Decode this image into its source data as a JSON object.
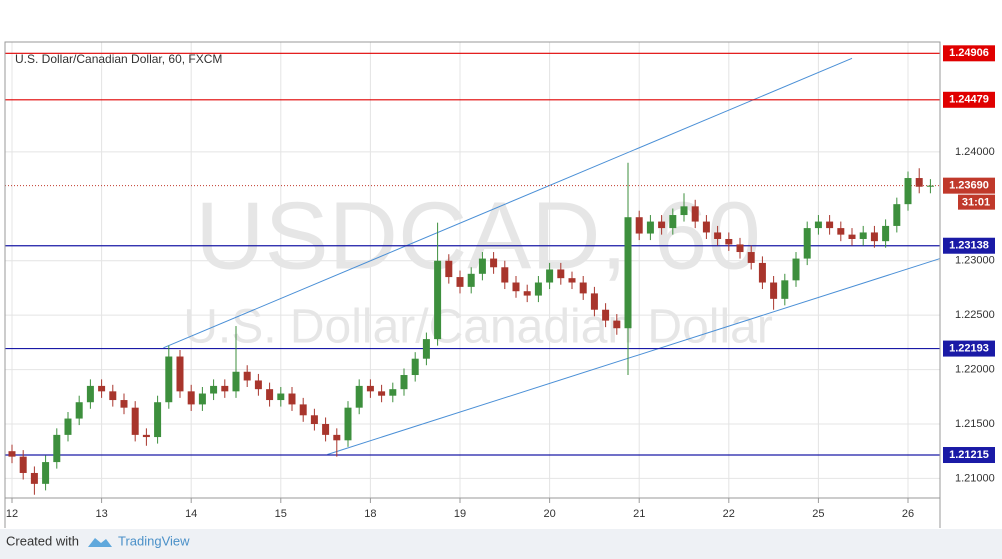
{
  "chart_data": {
    "type": "candlestick",
    "title": "U.S. Dollar/Canadian Dollar, 60, FXCM",
    "watermark": "USDCAD, 60",
    "watermark_subtitle": "U.S. Dollar/Canadian Dollar",
    "xlim": [
      -0.078,
      10.357
    ],
    "xticks": [
      {
        "value": 0,
        "label": "12"
      },
      {
        "value": 1,
        "label": "13"
      },
      {
        "value": 2,
        "label": "14"
      },
      {
        "value": 3,
        "label": "15"
      },
      {
        "value": 4,
        "label": "18"
      },
      {
        "value": 5,
        "label": "19"
      },
      {
        "value": 6,
        "label": "20"
      },
      {
        "value": 7,
        "label": "21"
      },
      {
        "value": 8,
        "label": "22"
      },
      {
        "value": 9,
        "label": "25"
      },
      {
        "value": 10,
        "label": "26"
      }
    ],
    "ylim": [
      1.2082,
      1.2501
    ],
    "yticks": [
      {
        "value": 1.21,
        "label": "1.21000"
      },
      {
        "value": 1.215,
        "label": "1.21500"
      },
      {
        "value": 1.22,
        "label": "1.22000"
      },
      {
        "value": 1.225,
        "label": "1.22500"
      },
      {
        "value": 1.23,
        "label": "1.23000"
      },
      {
        "value": 1.24,
        "label": "1.24000"
      }
    ],
    "grid": true,
    "up_color": "#3d8f3d",
    "down_color": "#a8352c",
    "x": [
      0,
      0.125,
      0.25,
      0.375,
      0.5,
      0.625,
      0.75,
      0.875,
      1,
      1.125,
      1.25,
      1.375,
      1.5,
      1.625,
      1.75,
      1.875,
      2,
      2.125,
      2.25,
      2.375,
      2.5,
      2.625,
      2.75,
      2.875,
      3,
      3.125,
      3.25,
      3.375,
      3.5,
      3.625,
      3.75,
      3.875,
      4,
      4.125,
      4.25,
      4.375,
      4.5,
      4.625,
      4.75,
      4.875,
      5,
      5.125,
      5.25,
      5.375,
      5.5,
      5.625,
      5.75,
      5.875,
      6,
      6.125,
      6.25,
      6.375,
      6.5,
      6.625,
      6.75,
      6.875,
      7,
      7.125,
      7.25,
      7.375,
      7.5,
      7.625,
      7.75,
      7.875,
      8,
      8.125,
      8.25,
      8.375,
      8.5,
      8.625,
      8.75,
      8.875,
      9,
      9.125,
      9.25,
      9.375,
      9.5,
      9.625,
      9.75,
      9.875,
      10,
      10.125,
      10.25
    ],
    "open": [
      1.2125,
      1.212,
      1.2105,
      1.2095,
      1.2115,
      1.214,
      1.2155,
      1.217,
      1.2185,
      1.218,
      1.2172,
      1.2165,
      1.214,
      1.2138,
      1.217,
      1.2212,
      1.218,
      1.2168,
      1.2178,
      1.2185,
      1.218,
      1.2198,
      1.219,
      1.2182,
      1.2172,
      1.2178,
      1.2168,
      1.2158,
      1.215,
      1.214,
      1.2135,
      1.2165,
      1.2185,
      1.218,
      1.2176,
      1.2182,
      1.2195,
      1.221,
      1.2228,
      1.23,
      1.2285,
      1.2276,
      1.2288,
      1.2302,
      1.2294,
      1.228,
      1.2272,
      1.2268,
      1.228,
      1.2292,
      1.2284,
      1.228,
      1.227,
      1.2255,
      1.2245,
      1.2238,
      1.234,
      1.2325,
      1.2336,
      1.233,
      1.2342,
      1.235,
      1.2336,
      1.2326,
      1.232,
      1.2315,
      1.2308,
      1.2298,
      1.228,
      1.2265,
      1.2282,
      1.2302,
      1.233,
      1.2336,
      1.233,
      1.2324,
      1.232,
      1.2326,
      1.2318,
      1.2332,
      1.2352,
      1.2376,
      1.2368
    ],
    "high": [
      1.2131,
      1.2126,
      1.2111,
      1.2121,
      1.2146,
      1.2161,
      1.2176,
      1.2191,
      1.2191,
      1.2186,
      1.2178,
      1.2171,
      1.2146,
      1.2176,
      1.2222,
      1.2218,
      1.2186,
      1.2184,
      1.2191,
      1.2191,
      1.224,
      1.2204,
      1.2196,
      1.2188,
      1.2184,
      1.2184,
      1.2174,
      1.2164,
      1.2156,
      1.2146,
      1.2171,
      1.2191,
      1.2191,
      1.2186,
      1.2188,
      1.2201,
      1.2216,
      1.2234,
      1.2335,
      1.2306,
      1.2291,
      1.2294,
      1.2308,
      1.2308,
      1.23,
      1.2286,
      1.2278,
      1.2286,
      1.2298,
      1.2298,
      1.229,
      1.2286,
      1.2276,
      1.2261,
      1.2251,
      1.239,
      1.2346,
      1.2342,
      1.2342,
      1.2348,
      1.2362,
      1.2356,
      1.2342,
      1.2332,
      1.2326,
      1.2321,
      1.2314,
      1.2304,
      1.2286,
      1.2288,
      1.2308,
      1.2336,
      1.2342,
      1.2342,
      1.2336,
      1.233,
      1.2332,
      1.2332,
      1.2338,
      1.2358,
      1.2382,
      1.2385,
      1.2375
    ],
    "low": [
      1.2114,
      1.2099,
      1.2085,
      1.2089,
      1.2109,
      1.2134,
      1.2149,
      1.2164,
      1.2174,
      1.2166,
      1.2159,
      1.2134,
      1.213,
      1.2132,
      1.2164,
      1.2174,
      1.2162,
      1.2162,
      1.2172,
      1.2174,
      1.2174,
      1.2184,
      1.2176,
      1.2166,
      1.2166,
      1.2162,
      1.2152,
      1.2144,
      1.2134,
      1.212,
      1.2129,
      1.2159,
      1.2174,
      1.217,
      1.217,
      1.2176,
      1.2189,
      1.2204,
      1.2222,
      1.2279,
      1.227,
      1.227,
      1.2282,
      1.2288,
      1.2274,
      1.2266,
      1.2262,
      1.2262,
      1.2274,
      1.2278,
      1.2274,
      1.2264,
      1.2249,
      1.2239,
      1.2232,
      1.2195,
      1.2319,
      1.2319,
      1.2324,
      1.2324,
      1.2336,
      1.233,
      1.232,
      1.2314,
      1.2309,
      1.2302,
      1.2292,
      1.2274,
      1.2255,
      1.2259,
      1.2276,
      1.2296,
      1.2324,
      1.2324,
      1.2318,
      1.2314,
      1.2314,
      1.2312,
      1.2312,
      1.2326,
      1.2346,
      1.2362,
      1.2362
    ],
    "close": [
      1.212,
      1.2105,
      1.2095,
      1.2115,
      1.214,
      1.2155,
      1.217,
      1.2185,
      1.218,
      1.2172,
      1.2165,
      1.214,
      1.2138,
      1.217,
      1.2212,
      1.218,
      1.2168,
      1.2178,
      1.2185,
      1.218,
      1.2198,
      1.219,
      1.2182,
      1.2172,
      1.2178,
      1.2168,
      1.2158,
      1.215,
      1.214,
      1.2135,
      1.2165,
      1.2185,
      1.218,
      1.2176,
      1.2182,
      1.2195,
      1.221,
      1.2228,
      1.23,
      1.2285,
      1.2276,
      1.2288,
      1.2302,
      1.2294,
      1.228,
      1.2272,
      1.2268,
      1.228,
      1.2292,
      1.2284,
      1.228,
      1.227,
      1.2255,
      1.2245,
      1.2238,
      1.234,
      1.2325,
      1.2336,
      1.233,
      1.2342,
      1.235,
      1.2336,
      1.2326,
      1.232,
      1.2315,
      1.2308,
      1.2298,
      1.228,
      1.2265,
      1.2282,
      1.2302,
      1.233,
      1.2336,
      1.233,
      1.2324,
      1.232,
      1.2326,
      1.2318,
      1.2332,
      1.2352,
      1.2376,
      1.2368,
      1.2369
    ],
    "levels": [
      {
        "value": 1.24906,
        "color": "#e00000"
      },
      {
        "value": 1.24479,
        "color": "#e00000"
      },
      {
        "value": 1.23138,
        "color": "#1a1aa6"
      },
      {
        "value": 1.22193,
        "color": "#1a1aa6"
      },
      {
        "value": 1.21215,
        "color": "#1a1aa6"
      }
    ],
    "current_price": {
      "value": 1.2369,
      "label": "1.23690",
      "countdown": "31:01",
      "color": "#c0392b"
    },
    "trendlines": [
      {
        "x": [
          1.69,
          9.375
        ],
        "y": [
          1.222,
          1.2486
        ],
        "color": "#4a8fd6"
      },
      {
        "x": [
          3.52,
          10.357
        ],
        "y": [
          1.2122,
          1.2302
        ],
        "color": "#4a8fd6"
      }
    ]
  },
  "footer": {
    "created_with": "Created with",
    "brand": "TradingView"
  }
}
